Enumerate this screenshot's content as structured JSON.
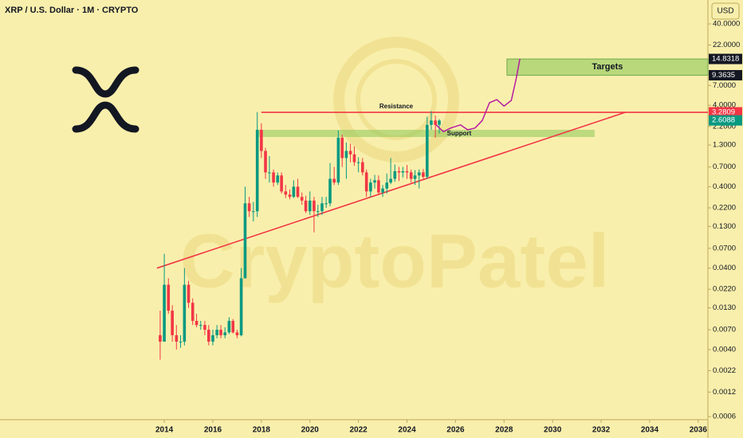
{
  "chart_data": {
    "type": "candlestick",
    "title": "XRP / U.S. Dollar · 1M · CRYPTO",
    "currency": "USD",
    "watermark": "CryptoPatel",
    "log_y": true,
    "grid": false,
    "up_color": "#089981",
    "down_color": "#f23645",
    "x": [
      2013.83,
      2014.0,
      2014.17,
      2014.33,
      2014.5,
      2014.67,
      2014.83,
      2015.0,
      2015.17,
      2015.33,
      2015.5,
      2015.67,
      2015.83,
      2016.0,
      2016.17,
      2016.33,
      2016.5,
      2016.67,
      2016.83,
      2017.0,
      2017.17,
      2017.33,
      2017.5,
      2017.67,
      2017.83,
      2018.0,
      2018.17,
      2018.33,
      2018.5,
      2018.67,
      2018.83,
      2019.0,
      2019.17,
      2019.33,
      2019.5,
      2019.67,
      2019.83,
      2020.0,
      2020.17,
      2020.33,
      2020.5,
      2020.67,
      2020.83,
      2021.0,
      2021.17,
      2021.33,
      2021.5,
      2021.67,
      2021.83,
      2022.0,
      2022.17,
      2022.33,
      2022.5,
      2022.67,
      2022.83,
      2023.0,
      2023.17,
      2023.33,
      2023.5,
      2023.67,
      2023.83,
      2024.0,
      2024.17,
      2024.33,
      2024.5,
      2024.67,
      2024.83,
      2025.0,
      2025.17,
      2025.33
    ],
    "open": [
      0.006,
      0.005,
      0.025,
      0.012,
      0.006,
      0.005,
      0.005,
      0.025,
      0.015,
      0.009,
      0.008,
      0.008,
      0.007,
      0.005,
      0.006,
      0.007,
      0.006,
      0.0065,
      0.009,
      0.0065,
      0.006,
      0.03,
      0.25,
      0.2,
      0.2,
      2.0,
      1.1,
      0.6,
      0.6,
      0.45,
      0.55,
      0.35,
      0.32,
      0.3,
      0.4,
      0.3,
      0.27,
      0.2,
      0.27,
      0.2,
      0.2,
      0.25,
      0.25,
      0.5,
      0.45,
      1.6,
      0.9,
      1.1,
      1.0,
      0.8,
      0.8,
      0.6,
      0.35,
      0.45,
      0.48,
      0.34,
      0.38,
      0.45,
      0.5,
      0.62,
      0.6,
      0.62,
      0.6,
      0.5,
      0.55,
      0.6,
      0.53,
      2.3,
      2.6,
      2.3
    ],
    "high": [
      0.012,
      0.06,
      0.03,
      0.014,
      0.008,
      0.006,
      0.04,
      0.028,
      0.017,
      0.011,
      0.009,
      0.009,
      0.008,
      0.007,
      0.008,
      0.008,
      0.0075,
      0.01,
      0.0095,
      0.007,
      0.04,
      0.4,
      0.3,
      0.26,
      3.3,
      2.4,
      1.2,
      0.95,
      0.65,
      0.6,
      0.6,
      0.42,
      0.37,
      0.48,
      0.5,
      0.34,
      0.31,
      0.35,
      0.3,
      0.24,
      0.3,
      0.3,
      0.78,
      0.7,
      1.96,
      1.75,
      1.4,
      1.35,
      1.25,
      0.92,
      0.9,
      0.65,
      0.5,
      0.56,
      0.55,
      0.42,
      0.58,
      0.9,
      0.75,
      0.7,
      0.7,
      0.74,
      0.65,
      0.64,
      0.65,
      0.66,
      2.9,
      3.4,
      3.0,
      2.7
    ],
    "low": [
      0.003,
      0.005,
      0.011,
      0.005,
      0.004,
      0.0042,
      0.0045,
      0.013,
      0.008,
      0.0075,
      0.007,
      0.006,
      0.0045,
      0.0045,
      0.0055,
      0.0055,
      0.0055,
      0.0062,
      0.0063,
      0.0055,
      0.0058,
      0.03,
      0.17,
      0.15,
      0.17,
      0.9,
      0.5,
      0.45,
      0.4,
      0.42,
      0.33,
      0.29,
      0.28,
      0.29,
      0.29,
      0.24,
      0.19,
      0.18,
      0.11,
      0.17,
      0.18,
      0.22,
      0.23,
      0.42,
      0.42,
      0.7,
      0.5,
      0.8,
      0.72,
      0.6,
      0.55,
      0.3,
      0.3,
      0.38,
      0.32,
      0.3,
      0.33,
      0.43,
      0.46,
      0.47,
      0.52,
      0.5,
      0.45,
      0.42,
      0.38,
      0.5,
      0.5,
      2.0,
      1.6,
      1.8
    ],
    "close": [
      0.005,
      0.025,
      0.012,
      0.006,
      0.005,
      0.005,
      0.025,
      0.015,
      0.009,
      0.008,
      0.008,
      0.007,
      0.005,
      0.006,
      0.007,
      0.006,
      0.0065,
      0.009,
      0.0065,
      0.006,
      0.03,
      0.25,
      0.2,
      0.2,
      2.0,
      1.1,
      0.6,
      0.6,
      0.45,
      0.55,
      0.35,
      0.32,
      0.3,
      0.4,
      0.3,
      0.27,
      0.2,
      0.27,
      0.2,
      0.2,
      0.25,
      0.25,
      0.5,
      0.45,
      1.6,
      0.9,
      1.1,
      1.0,
      0.8,
      0.8,
      0.6,
      0.35,
      0.45,
      0.48,
      0.34,
      0.38,
      0.45,
      0.5,
      0.62,
      0.6,
      0.62,
      0.6,
      0.5,
      0.55,
      0.6,
      0.53,
      2.3,
      2.6,
      2.3,
      2.6
    ],
    "xlim": [
      2007.23,
      2036.4
    ],
    "ylim": [
      0.00055,
      78.6
    ],
    "xticks": [
      2014,
      2016,
      2018,
      2020,
      2022,
      2024,
      2026,
      2028,
      2030,
      2032,
      2034,
      2036
    ],
    "yticks": [
      {
        "value": 0.0006,
        "label": "0.0006"
      },
      {
        "value": 0.0012,
        "label": "0.0012"
      },
      {
        "value": 0.0022,
        "label": "0.0022"
      },
      {
        "value": 0.004,
        "label": "0.0040"
      },
      {
        "value": 0.007,
        "label": "0.0070"
      },
      {
        "value": 0.013,
        "label": "0.0130"
      },
      {
        "value": 0.022,
        "label": "0.0220"
      },
      {
        "value": 0.04,
        "label": "0.0400"
      },
      {
        "value": 0.07,
        "label": "0.0700"
      },
      {
        "value": 0.13,
        "label": "0.1300"
      },
      {
        "value": 0.22,
        "label": "0.2200"
      },
      {
        "value": 0.4,
        "label": "0.4000"
      },
      {
        "value": 0.7,
        "label": "0.7000"
      },
      {
        "value": 1.3,
        "label": "1.3000"
      },
      {
        "value": 2.2,
        "label": "2.2000"
      },
      {
        "value": 4,
        "label": "4.0000"
      },
      {
        "value": 7,
        "label": "7.0000"
      },
      {
        "value": 22,
        "label": "22.0000"
      },
      {
        "value": 40,
        "label": "40.0000"
      }
    ],
    "lines": [
      {
        "name": "Resistance",
        "color": "#f23645",
        "x": [
          2018.0,
          2036.4
        ],
        "y": [
          3.2809,
          3.2809
        ]
      },
      {
        "color": "#f23645",
        "x": [
          2013.7,
          2033.0
        ],
        "y": [
          0.04,
          3.2809
        ]
      }
    ],
    "zones": [
      {
        "name": "Support",
        "color": "rgba(140,200,90,0.55)",
        "x": [
          2017.78,
          2031.73
        ],
        "y": [
          1.63,
          2.0
        ]
      },
      {
        "name": "Targets",
        "color": "rgba(140,200,90,0.6)",
        "x": [
          2028.12,
          2036.4
        ],
        "y": [
          9.3635,
          14.8318
        ]
      }
    ],
    "projection": {
      "color": "#b71ca1",
      "x": [
        2025.2,
        2025.5,
        2025.8,
        2026.2,
        2026.5,
        2026.8,
        2027.1,
        2027.4,
        2027.7,
        2028.0,
        2028.3,
        2028.5,
        2028.65
      ],
      "y": [
        2.3,
        1.9,
        2.1,
        2.3,
        2.0,
        2.1,
        2.6,
        4.3,
        4.7,
        3.9,
        4.6,
        8.5,
        14.83
      ]
    },
    "price_markers": [
      {
        "value": 14.8318,
        "color": "#131722"
      },
      {
        "value": 9.3635,
        "color": "#131722"
      },
      {
        "value": 3.2809,
        "color": "#f23645"
      },
      {
        "value": 2.6088,
        "color": "#089981"
      }
    ]
  }
}
